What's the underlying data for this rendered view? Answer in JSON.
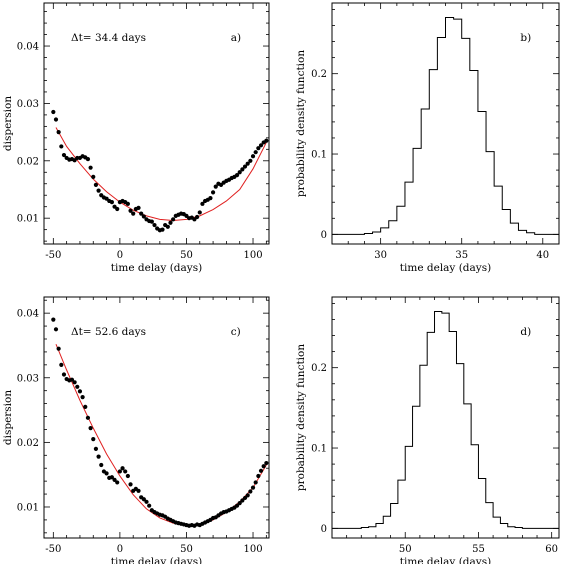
{
  "chart_data": [
    {
      "panel_label": "a)",
      "type": "scatter",
      "annotation": "Δt= 34.4 days",
      "xlabel": "time delay (days)",
      "ylabel": "dispersion",
      "xlim": [
        -57,
        112
      ],
      "ylim": [
        0.0055,
        0.0475
      ],
      "xticks": [
        -50,
        0,
        50,
        100
      ],
      "yticks": [
        0.01,
        0.02,
        0.03,
        0.04
      ],
      "ytick_labels": [
        "0.01",
        "0.02",
        "0.03",
        "0.04"
      ],
      "series": [
        {
          "points_x": [
            -50,
            -48,
            -46,
            -44,
            -42,
            -40,
            -38,
            -36,
            -34,
            -32,
            -30,
            -28,
            -26,
            -24,
            -22,
            -20,
            -18,
            -16,
            -14,
            -12,
            -10,
            -8,
            -6,
            -4,
            -2,
            0,
            2,
            4,
            6,
            8,
            10,
            12,
            14,
            16,
            18,
            20,
            22,
            24,
            26,
            28,
            30,
            32,
            34,
            36,
            38,
            40,
            42,
            44,
            46,
            48,
            50,
            52,
            54,
            56,
            58,
            60,
            62,
            64,
            66,
            68,
            70,
            72,
            74,
            76,
            78,
            80,
            82,
            84,
            86,
            88,
            90,
            92,
            94,
            96,
            98,
            100,
            102,
            104,
            106,
            108,
            110
          ],
          "points_y": [
            0.0285,
            0.0272,
            0.025,
            0.0225,
            0.021,
            0.0205,
            0.0202,
            0.0203,
            0.0201,
            0.0205,
            0.0205,
            0.0208,
            0.0206,
            0.0203,
            0.0188,
            0.0172,
            0.0158,
            0.0148,
            0.014,
            0.0136,
            0.0134,
            0.013,
            0.0128,
            0.012,
            0.0116,
            0.0128,
            0.013,
            0.0128,
            0.0125,
            0.0113,
            0.0108,
            0.0116,
            0.0118,
            0.0108,
            0.0103,
            0.0098,
            0.0095,
            0.0094,
            0.0088,
            0.0082,
            0.0079,
            0.008,
            0.0088,
            0.0085,
            0.0092,
            0.0098,
            0.0104,
            0.0106,
            0.0108,
            0.0107,
            0.0104,
            0.01,
            0.0101,
            0.0098,
            0.0102,
            0.011,
            0.0125,
            0.013,
            0.0132,
            0.0135,
            0.0145,
            0.0155,
            0.016,
            0.0158,
            0.0162,
            0.0165,
            0.0167,
            0.017,
            0.0172,
            0.0175,
            0.018,
            0.0185,
            0.019,
            0.0195,
            0.02,
            0.0208,
            0.0215,
            0.0222,
            0.0227,
            0.0232,
            0.0235
          ]
        },
        {
          "fit_x": [
            -48,
            -40,
            -30,
            -20,
            -10,
            0,
            10,
            20,
            30,
            40,
            50,
            60,
            70,
            80,
            90,
            100,
            110
          ],
          "fit_y": [
            0.0258,
            0.0225,
            0.0195,
            0.0168,
            0.0146,
            0.0128,
            0.0114,
            0.0104,
            0.0098,
            0.0096,
            0.0098,
            0.0104,
            0.0115,
            0.013,
            0.015,
            0.0186,
            0.0232
          ]
        }
      ]
    },
    {
      "panel_label": "b)",
      "type": "bar",
      "xlabel": "time delay (days)",
      "ylabel": "probability density function",
      "xlim": [
        27,
        41
      ],
      "ylim": [
        -0.012,
        0.288
      ],
      "xticks": [
        30,
        35,
        40
      ],
      "yticks": [
        0,
        0.1,
        0.2
      ],
      "ytick_labels": [
        "0",
        "0.1",
        "0.2"
      ],
      "step_edges": [
        27.5,
        28.0,
        28.5,
        29.0,
        29.5,
        30.0,
        30.5,
        31.0,
        31.5,
        32.0,
        32.5,
        33.0,
        33.5,
        34.0,
        34.5,
        35.0,
        35.5,
        36.0,
        36.5,
        37.0,
        37.5,
        38.0,
        38.5,
        39.0,
        39.5,
        40.0,
        40.5
      ],
      "values": [
        0,
        0,
        0,
        0.001,
        0.003,
        0.008,
        0.017,
        0.035,
        0.065,
        0.107,
        0.156,
        0.205,
        0.245,
        0.27,
        0.268,
        0.244,
        0.204,
        0.153,
        0.103,
        0.06,
        0.031,
        0.014,
        0.005,
        0.002,
        0,
        0
      ]
    },
    {
      "panel_label": "c)",
      "type": "scatter",
      "annotation": "Δt= 52.6 days",
      "xlabel": "time delay (days)",
      "ylabel": "dispersion",
      "xlim": [
        -57,
        112
      ],
      "ylim": [
        0.0052,
        0.0425
      ],
      "xticks": [
        -50,
        0,
        50,
        100
      ],
      "yticks": [
        0.01,
        0.02,
        0.03,
        0.04
      ],
      "ytick_labels": [
        "0.01",
        "0.02",
        "0.03",
        "0.04"
      ],
      "series": [
        {
          "points_x": [
            -50,
            -48,
            -46,
            -44,
            -42,
            -40,
            -38,
            -36,
            -34,
            -32,
            -30,
            -28,
            -26,
            -24,
            -22,
            -20,
            -18,
            -16,
            -14,
            -12,
            -10,
            -8,
            -6,
            -4,
            -2,
            0,
            2,
            4,
            6,
            8,
            10,
            12,
            14,
            16,
            18,
            20,
            22,
            24,
            26,
            28,
            30,
            32,
            34,
            36,
            38,
            40,
            42,
            44,
            46,
            48,
            50,
            52,
            54,
            56,
            58,
            60,
            62,
            64,
            66,
            68,
            70,
            72,
            74,
            76,
            78,
            80,
            82,
            84,
            86,
            88,
            90,
            92,
            94,
            96,
            98,
            100,
            102,
            104,
            106,
            108,
            110
          ],
          "points_y": [
            0.039,
            0.0375,
            0.0345,
            0.032,
            0.0305,
            0.0298,
            0.0296,
            0.0297,
            0.0293,
            0.0286,
            0.0279,
            0.027,
            0.0255,
            0.0238,
            0.0222,
            0.0205,
            0.019,
            0.0178,
            0.0165,
            0.0155,
            0.0152,
            0.0145,
            0.0146,
            0.0142,
            0.0138,
            0.0155,
            0.016,
            0.0155,
            0.0148,
            0.0135,
            0.0125,
            0.0128,
            0.0125,
            0.0115,
            0.0112,
            0.0108,
            0.0102,
            0.0095,
            0.0092,
            0.009,
            0.0088,
            0.0087,
            0.0085,
            0.0082,
            0.008,
            0.0078,
            0.0076,
            0.0075,
            0.0074,
            0.0073,
            0.0072,
            0.0071,
            0.0072,
            0.0071,
            0.0073,
            0.0072,
            0.0074,
            0.0076,
            0.0078,
            0.008,
            0.0083,
            0.0084,
            0.0087,
            0.009,
            0.0092,
            0.0093,
            0.0095,
            0.0097,
            0.0099,
            0.0102,
            0.0106,
            0.011,
            0.0114,
            0.0118,
            0.0124,
            0.013,
            0.0138,
            0.0148,
            0.0156,
            0.0163,
            0.0168
          ]
        },
        {
          "fit_x": [
            -48,
            -40,
            -30,
            -20,
            -10,
            0,
            10,
            20,
            30,
            40,
            50,
            60,
            70,
            80,
            90,
            100,
            110
          ],
          "fit_y": [
            0.0352,
            0.0312,
            0.0265,
            0.0222,
            0.0182,
            0.0148,
            0.0119,
            0.0097,
            0.0083,
            0.0075,
            0.0071,
            0.0073,
            0.008,
            0.0092,
            0.0108,
            0.013,
            0.0165
          ]
        }
      ]
    },
    {
      "panel_label": "d)",
      "type": "bar",
      "xlabel": "time delay (days)",
      "ylabel": "probability density function",
      "xlim": [
        45,
        60.5
      ],
      "ylim": [
        -0.012,
        0.288
      ],
      "xticks": [
        50,
        55,
        60
      ],
      "yticks": [
        0,
        0.1,
        0.2
      ],
      "ytick_labels": [
        "0",
        "0.1",
        "0.2"
      ],
      "step_edges": [
        45.5,
        46.0,
        46.5,
        47.0,
        47.5,
        48.0,
        48.5,
        49.0,
        49.5,
        50.0,
        50.5,
        51.0,
        51.5,
        52.0,
        52.5,
        53.0,
        53.5,
        54.0,
        54.5,
        55.0,
        55.5,
        56.0,
        56.5,
        57.0,
        57.5,
        58.0,
        58.5,
        59.0,
        59.5,
        60.0
      ],
      "values": [
        0,
        0,
        0,
        0.001,
        0.002,
        0.006,
        0.015,
        0.031,
        0.06,
        0.102,
        0.152,
        0.203,
        0.244,
        0.27,
        0.268,
        0.245,
        0.205,
        0.155,
        0.104,
        0.062,
        0.032,
        0.014,
        0.006,
        0.002,
        0.001,
        0,
        0,
        0,
        0
      ]
    }
  ]
}
